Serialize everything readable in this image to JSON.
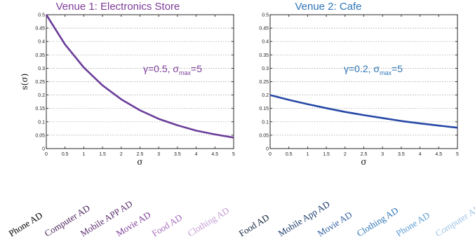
{
  "chart_data": [
    {
      "type": "line",
      "title": "Venue 1: Electronics Store",
      "title_color": "#7d3c98",
      "xlabel": "σ",
      "ylabel": "s(σ)",
      "xlim": [
        0,
        5
      ],
      "ylim": [
        0,
        0.5
      ],
      "grid": true,
      "x_ticks": [
        "0",
        "0.5",
        "1",
        "1.5",
        "2",
        "2.5",
        "3",
        "3.5",
        "4",
        "4.5",
        "5"
      ],
      "y_ticks": [
        "0",
        "0.05",
        "0.1",
        "0.15",
        "0.2",
        "0.25",
        "0.3",
        "0.35",
        "0.4",
        "0.45",
        "0.5"
      ],
      "annotation": {
        "main": "γ=0.5, σ",
        "sub": "max",
        "tail": "=5",
        "color": "#7d3c98"
      },
      "line_color": "#6a3d9a",
      "series": [
        {
          "x": [
            0,
            0.5,
            1,
            1.5,
            2,
            2.5,
            3,
            3.5,
            4,
            4.5,
            5
          ],
          "values": [
            0.5,
            0.389,
            0.303,
            0.236,
            0.184,
            0.143,
            0.111,
            0.087,
            0.067,
            0.053,
            0.041
          ]
        }
      ],
      "ad_labels": [
        {
          "text": "Phone AD",
          "color": "#000000"
        },
        {
          "text": "Computer AD",
          "color": "#4a235a"
        },
        {
          "text": "Mobile APP AD",
          "color": "#5b2c6f"
        },
        {
          "text": "Movie AD",
          "color": "#7d3c98"
        },
        {
          "text": "Food AD",
          "color": "#a569bd"
        },
        {
          "text": "Clothing AD",
          "color": "#c39bd3"
        }
      ]
    },
    {
      "type": "line",
      "title": "Venue 2: Cafe",
      "title_color": "#2e75b6",
      "xlabel": "σ",
      "ylabel": "",
      "xlim": [
        0,
        5
      ],
      "ylim": [
        0,
        0.5
      ],
      "grid": true,
      "x_ticks": [
        "0",
        "0.5",
        "1",
        "1.5",
        "2",
        "2.5",
        "3",
        "3.5",
        "4",
        "4.5",
        "5"
      ],
      "y_ticks": [
        "0",
        "0.05",
        "0.1",
        "0.15",
        "0.2",
        "0.25",
        "0.3",
        "0.35",
        "0.4",
        "0.45",
        "0.5"
      ],
      "annotation": {
        "main": "γ=0.2, σ",
        "sub": "max",
        "tail": "=5",
        "color": "#2e75b6"
      },
      "line_color": "#2749a6",
      "series": [
        {
          "x": [
            0,
            0.5,
            1,
            1.5,
            2,
            2.5,
            3,
            3.5,
            4,
            4.5,
            5
          ],
          "values": [
            0.2,
            0.182,
            0.166,
            0.151,
            0.137,
            0.125,
            0.114,
            0.103,
            0.094,
            0.086,
            0.078
          ]
        }
      ],
      "ad_labels": [
        {
          "text": "Food AD",
          "color": "#0b1f3a"
        },
        {
          "text": "Mobile App AD",
          "color": "#1b3a6b"
        },
        {
          "text": "Movie AD",
          "color": "#2e5c9e"
        },
        {
          "text": "Clothing AD",
          "color": "#2e75b6"
        },
        {
          "text": "Phone AD",
          "color": "#5b9bd5"
        },
        {
          "text": "Computer AD",
          "color": "#9dc3e6"
        }
      ]
    }
  ]
}
